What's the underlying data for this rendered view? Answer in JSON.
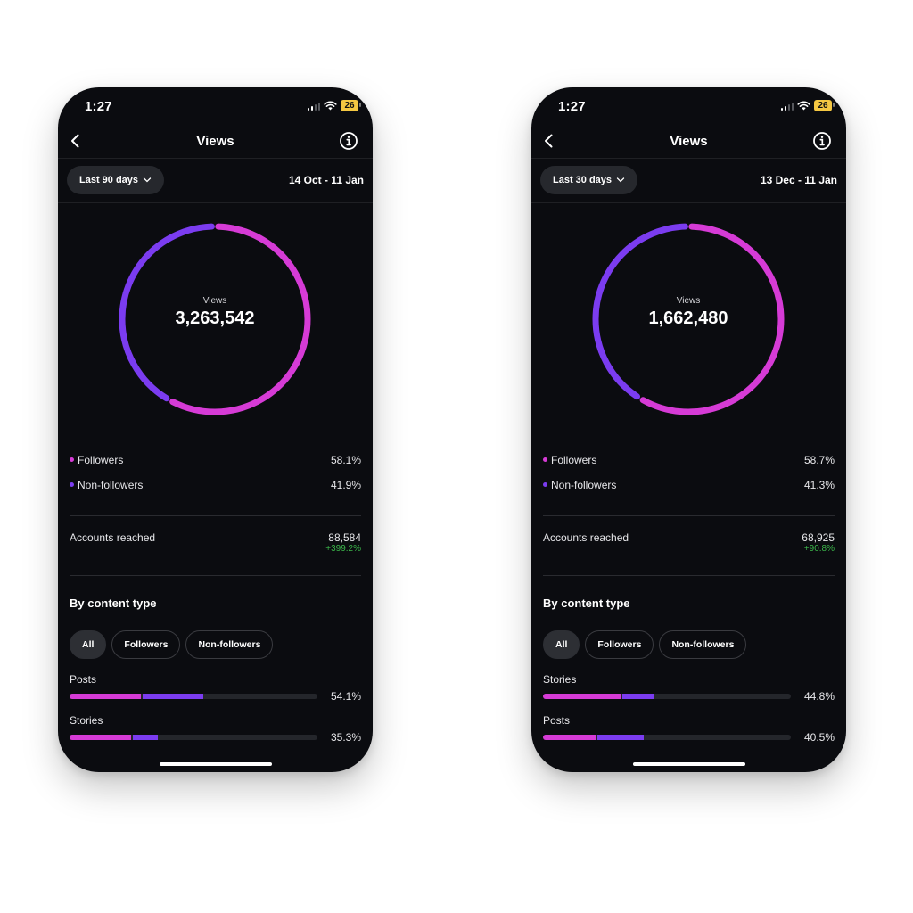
{
  "colors": {
    "followers": "#d63bd6",
    "non_followers": "#7b3cf0",
    "positive": "#3bb54a"
  },
  "phones": [
    {
      "status": {
        "time": "1:27",
        "battery": "26"
      },
      "nav": {
        "title": "Views",
        "back_icon": "chevron-left-icon",
        "info_icon": "info-icon"
      },
      "range": {
        "label": "Last 90 days",
        "date_range": "14 Oct - 11 Jan"
      },
      "donut": {
        "label": "Views",
        "value": "3,263,542",
        "followers_fraction": 0.581
      },
      "legend": [
        {
          "label": "Followers",
          "pct": "58.1%"
        },
        {
          "label": "Non-followers",
          "pct": "41.9%"
        }
      ],
      "accounts_reached": {
        "label": "Accounts reached",
        "value": "88,584",
        "change": "+399.2%"
      },
      "content_type": {
        "title": "By content type",
        "chips": [
          "All",
          "Followers",
          "Non-followers"
        ],
        "rows": [
          {
            "label": "Posts",
            "pct": "54.1%",
            "followers_share": 0.29,
            "non_followers_share": 0.25
          },
          {
            "label": "Stories",
            "pct": "35.3%",
            "followers_share": 0.25,
            "non_followers_share": 0.105
          }
        ]
      }
    },
    {
      "status": {
        "time": "1:27",
        "battery": "26"
      },
      "nav": {
        "title": "Views",
        "back_icon": "chevron-left-icon",
        "info_icon": "info-icon"
      },
      "range": {
        "label": "Last 30 days",
        "date_range": "13 Dec - 11 Jan"
      },
      "donut": {
        "label": "Views",
        "value": "1,662,480",
        "followers_fraction": 0.587
      },
      "legend": [
        {
          "label": "Followers",
          "pct": "58.7%"
        },
        {
          "label": "Non-followers",
          "pct": "41.3%"
        }
      ],
      "accounts_reached": {
        "label": "Accounts reached",
        "value": "68,925",
        "change": "+90.8%"
      },
      "content_type": {
        "title": "By content type",
        "chips": [
          "All",
          "Followers",
          "Non-followers"
        ],
        "rows": [
          {
            "label": "Stories",
            "pct": "44.8%",
            "followers_share": 0.315,
            "non_followers_share": 0.135
          },
          {
            "label": "Posts",
            "pct": "40.5%",
            "followers_share": 0.215,
            "non_followers_share": 0.19
          }
        ]
      }
    }
  ]
}
